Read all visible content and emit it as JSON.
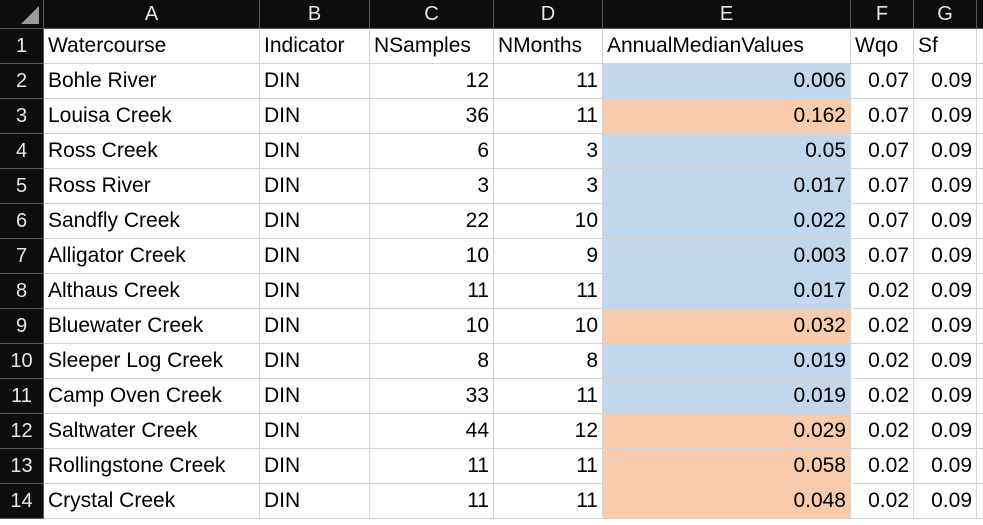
{
  "spreadsheet": {
    "column_letters": [
      "A",
      "B",
      "C",
      "D",
      "E",
      "F",
      "G"
    ],
    "row_numbers": [
      "1",
      "2",
      "3",
      "4",
      "5",
      "6",
      "7",
      "8",
      "9",
      "10",
      "11",
      "12",
      "13",
      "14"
    ],
    "headers": [
      "Watercourse",
      "Indicator",
      "NSamples",
      "NMonths",
      "AnnualMedianValues",
      "Wqo",
      "Sf"
    ],
    "rows": [
      {
        "watercourse": "Bohle River",
        "indicator": "DIN",
        "nsamples": "12",
        "nmonths": "11",
        "median": "0.006",
        "wqo": "0.07",
        "sf": "0.09",
        "fill": "blue"
      },
      {
        "watercourse": "Louisa Creek",
        "indicator": "DIN",
        "nsamples": "36",
        "nmonths": "11",
        "median": "0.162",
        "wqo": "0.07",
        "sf": "0.09",
        "fill": "orange"
      },
      {
        "watercourse": "Ross Creek",
        "indicator": "DIN",
        "nsamples": "6",
        "nmonths": "3",
        "median": "0.05",
        "wqo": "0.07",
        "sf": "0.09",
        "fill": "blue"
      },
      {
        "watercourse": "Ross River",
        "indicator": "DIN",
        "nsamples": "3",
        "nmonths": "3",
        "median": "0.017",
        "wqo": "0.07",
        "sf": "0.09",
        "fill": "blue"
      },
      {
        "watercourse": "Sandfly Creek",
        "indicator": "DIN",
        "nsamples": "22",
        "nmonths": "10",
        "median": "0.022",
        "wqo": "0.07",
        "sf": "0.09",
        "fill": "blue"
      },
      {
        "watercourse": "Alligator Creek",
        "indicator": "DIN",
        "nsamples": "10",
        "nmonths": "9",
        "median": "0.003",
        "wqo": "0.07",
        "sf": "0.09",
        "fill": "blue"
      },
      {
        "watercourse": "Althaus Creek",
        "indicator": "DIN",
        "nsamples": "11",
        "nmonths": "11",
        "median": "0.017",
        "wqo": "0.02",
        "sf": "0.09",
        "fill": "blue"
      },
      {
        "watercourse": "Bluewater Creek",
        "indicator": "DIN",
        "nsamples": "10",
        "nmonths": "10",
        "median": "0.032",
        "wqo": "0.02",
        "sf": "0.09",
        "fill": "orange"
      },
      {
        "watercourse": "Sleeper Log Creek",
        "indicator": "DIN",
        "nsamples": "8",
        "nmonths": "8",
        "median": "0.019",
        "wqo": "0.02",
        "sf": "0.09",
        "fill": "blue"
      },
      {
        "watercourse": "Camp Oven Creek",
        "indicator": "DIN",
        "nsamples": "33",
        "nmonths": "11",
        "median": "0.019",
        "wqo": "0.02",
        "sf": "0.09",
        "fill": "blue"
      },
      {
        "watercourse": "Saltwater Creek",
        "indicator": "DIN",
        "nsamples": "44",
        "nmonths": "12",
        "median": "0.029",
        "wqo": "0.02",
        "sf": "0.09",
        "fill": "orange"
      },
      {
        "watercourse": "Rollingstone Creek",
        "indicator": "DIN",
        "nsamples": "11",
        "nmonths": "11",
        "median": "0.058",
        "wqo": "0.02",
        "sf": "0.09",
        "fill": "orange"
      },
      {
        "watercourse": "Crystal Creek",
        "indicator": "DIN",
        "nsamples": "11",
        "nmonths": "11",
        "median": "0.048",
        "wqo": "0.02",
        "sf": "0.09",
        "fill": "orange"
      }
    ],
    "colors": {
      "blue": "#c0d7ee",
      "orange": "#f8cbad",
      "header_bg": "#0d0d0d"
    }
  }
}
